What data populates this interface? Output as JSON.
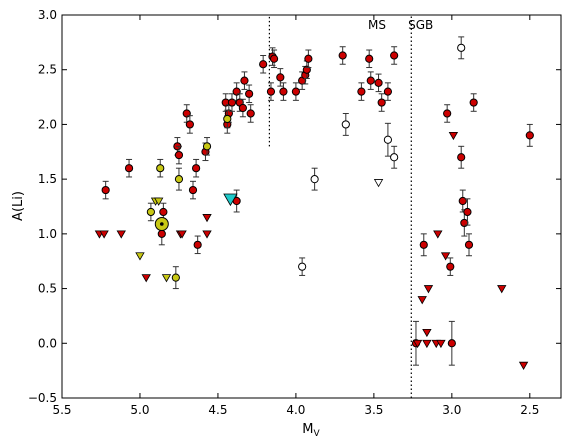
{
  "chart_data": {
    "type": "scatter",
    "xlabel": "M",
    "xlabel_sub": "V",
    "ylabel": "A(Li)",
    "xlim": [
      5.5,
      2.3
    ],
    "ylim": [
      -0.5,
      3.0
    ],
    "x_reversed": true,
    "xticks": [
      5.5,
      5.0,
      4.5,
      4.0,
      3.5,
      3.0,
      2.5
    ],
    "xtick_labels": [
      "5.5",
      "5.0",
      "4.5",
      "4.0",
      "3.5",
      "3.0",
      "2.5"
    ],
    "yticks": [
      -0.5,
      0.0,
      0.5,
      1.0,
      1.5,
      2.0,
      2.5,
      3.0
    ],
    "ytick_labels": [
      "−0.5",
      "0.0",
      "0.5",
      "1.0",
      "1.5",
      "2.0",
      "2.5",
      "3.0"
    ],
    "grid": false,
    "vlines": [
      {
        "x": 4.17,
        "y_from": 1.8,
        "y_to": 3.0,
        "style": "dotted"
      },
      {
        "x": 3.26,
        "y_from": -0.5,
        "y_to": 3.0,
        "style": "dotted"
      }
    ],
    "annotations": [
      {
        "text": "MS",
        "x": 3.48,
        "y": 2.87
      },
      {
        "text": "SGB",
        "x": 3.2,
        "y": 2.87
      }
    ],
    "colors": {
      "red": "#cc0000",
      "yellow": "#c8c814",
      "cyan": "#1ec8c8",
      "open": "#ffffff",
      "black": "#000000"
    },
    "series": [
      {
        "marker": "circle",
        "color": "red",
        "points": [
          [
            5.22,
            1.4,
            0.08
          ],
          [
            5.07,
            1.6,
            0.08
          ],
          [
            4.85,
            1.2,
            0.08
          ],
          [
            4.86,
            1.0,
            0.1
          ],
          [
            4.76,
            1.8,
            0.08
          ],
          [
            4.75,
            1.72,
            0.08
          ],
          [
            4.7,
            2.1,
            0.08
          ],
          [
            4.68,
            2.0,
            0.08
          ],
          [
            4.66,
            1.4,
            0.08
          ],
          [
            4.64,
            1.6,
            0.08
          ],
          [
            4.63,
            0.9,
            0.08
          ],
          [
            4.58,
            1.75,
            0.08
          ],
          [
            4.45,
            2.2,
            0.08
          ],
          [
            4.44,
            2.0,
            0.08
          ],
          [
            4.43,
            2.1,
            0.08
          ],
          [
            4.41,
            2.2,
            0.08
          ],
          [
            4.38,
            2.3,
            0.08
          ],
          [
            4.36,
            2.2,
            0.08
          ],
          [
            4.34,
            2.15,
            0.08
          ],
          [
            4.33,
            2.4,
            0.08
          ],
          [
            4.3,
            2.28,
            0.08
          ],
          [
            4.29,
            2.1,
            0.08
          ],
          [
            4.38,
            1.3,
            0.1
          ],
          [
            4.21,
            2.55,
            0.08
          ],
          [
            4.16,
            2.3,
            0.08
          ],
          [
            4.15,
            2.62,
            0.08
          ],
          [
            4.14,
            2.6,
            0.08
          ],
          [
            4.1,
            2.43,
            0.08
          ],
          [
            4.08,
            2.3,
            0.08
          ],
          [
            4.0,
            2.3,
            0.08
          ],
          [
            3.96,
            2.4,
            0.08
          ],
          [
            3.94,
            2.45,
            0.08
          ],
          [
            3.93,
            2.5,
            0.08
          ],
          [
            3.92,
            2.6,
            0.08
          ],
          [
            3.7,
            2.63,
            0.08
          ],
          [
            3.58,
            2.3,
            0.08
          ],
          [
            3.53,
            2.6,
            0.08
          ],
          [
            3.52,
            2.4,
            0.08
          ],
          [
            3.47,
            2.38,
            0.08
          ],
          [
            3.45,
            2.2,
            0.08
          ],
          [
            3.41,
            2.3,
            0.08
          ],
          [
            3.37,
            2.63,
            0.08
          ],
          [
            3.23,
            0.0,
            0.2
          ],
          [
            3.18,
            0.9,
            0.1
          ],
          [
            3.03,
            2.1,
            0.08
          ],
          [
            3.01,
            0.7,
            0.08
          ],
          [
            3.0,
            0.0,
            0.2
          ],
          [
            2.94,
            1.7,
            0.1
          ],
          [
            2.93,
            1.3,
            0.1
          ],
          [
            2.92,
            1.1,
            0.12
          ],
          [
            2.9,
            1.2,
            0.12
          ],
          [
            2.89,
            0.9,
            0.1
          ],
          [
            2.86,
            2.2,
            0.08
          ],
          [
            2.5,
            1.9,
            0.1
          ]
        ]
      },
      {
        "marker": "circle",
        "color": "yellow",
        "points": [
          [
            4.93,
            1.2,
            0.08
          ],
          [
            4.87,
            1.6,
            0.08
          ],
          [
            4.75,
            1.5,
            0.1
          ],
          [
            4.77,
            0.6,
            0.1
          ],
          [
            4.57,
            1.8,
            0.08
          ],
          [
            4.44,
            2.05,
            0.08
          ]
        ]
      },
      {
        "marker": "circle-large-dot",
        "color": "yellow",
        "points": [
          [
            4.86,
            1.09,
            0.0
          ]
        ]
      },
      {
        "marker": "circle",
        "color": "open",
        "points": [
          [
            3.96,
            0.7,
            0.08
          ],
          [
            3.88,
            1.5,
            0.1
          ],
          [
            3.68,
            2.0,
            0.1
          ],
          [
            3.41,
            1.86,
            0.15
          ],
          [
            3.37,
            1.7,
            0.1
          ],
          [
            2.94,
            2.7,
            0.1
          ]
        ]
      },
      {
        "marker": "triangle-down",
        "color": "red",
        "points": [
          [
            5.26,
            1.0
          ],
          [
            5.23,
            1.0
          ],
          [
            5.12,
            1.0
          ],
          [
            4.96,
            0.6
          ],
          [
            4.74,
            1.0
          ],
          [
            4.73,
            1.0
          ],
          [
            4.57,
            1.15
          ],
          [
            4.57,
            1.0
          ],
          [
            3.19,
            0.4
          ],
          [
            3.15,
            0.5
          ],
          [
            3.16,
            0.1
          ],
          [
            3.1,
            0.0
          ],
          [
            3.09,
            1.0
          ],
          [
            3.07,
            0.0
          ],
          [
            3.04,
            0.8
          ],
          [
            2.99,
            1.9
          ],
          [
            2.68,
            0.5
          ],
          [
            2.54,
            -0.2
          ],
          [
            3.22,
            0.0
          ],
          [
            3.16,
            0.0
          ]
        ]
      },
      {
        "marker": "triangle-down",
        "color": "yellow",
        "points": [
          [
            5.0,
            0.8
          ],
          [
            4.9,
            1.3
          ],
          [
            4.88,
            1.3
          ],
          [
            4.83,
            0.6
          ]
        ]
      },
      {
        "marker": "triangle-down",
        "color": "open",
        "points": [
          [
            3.47,
            1.47
          ]
        ]
      },
      {
        "marker": "triangle-down-large",
        "color": "cyan",
        "points": [
          [
            4.42,
            1.32
          ]
        ]
      }
    ]
  }
}
